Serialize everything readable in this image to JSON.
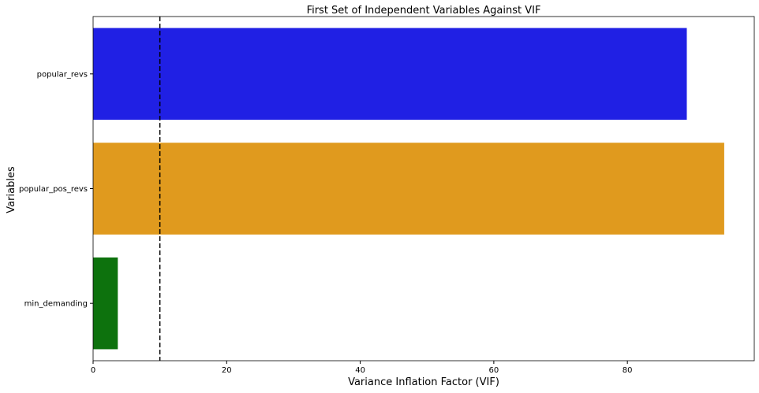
{
  "chart_data": {
    "type": "bar",
    "orientation": "horizontal",
    "title": "First Set of Independent Variables Against VIF",
    "xlabel": "Variance Inflation Factor (VIF)",
    "ylabel": "Variables",
    "categories": [
      "popular_revs",
      "popular_pos_revs",
      "min_demanding"
    ],
    "values": [
      88.9,
      94.5,
      3.7
    ],
    "colors": [
      "#2020e4",
      "#e09a1e",
      "#0d720d"
    ],
    "xlim": [
      0,
      99
    ],
    "xticks": [
      0,
      20,
      40,
      60,
      80
    ],
    "reference_line": {
      "x": 10,
      "style": "dashed",
      "color": "#000000"
    },
    "grid": false
  }
}
